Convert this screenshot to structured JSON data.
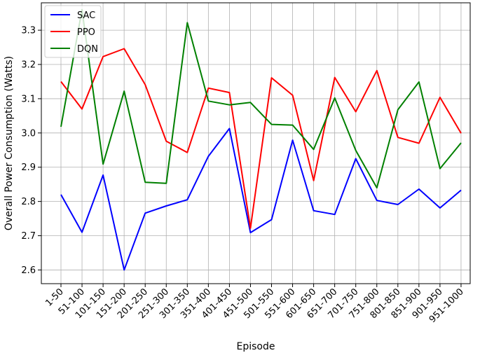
{
  "chart_data": {
    "type": "line",
    "title": "",
    "xlabel": "Episode",
    "ylabel": "Overall Power Consumption (Watts)",
    "ylim": [
      2.56,
      3.38
    ],
    "yticks": [
      "2.6",
      "2.7",
      "2.8",
      "2.9",
      "3.0",
      "3.1",
      "3.2",
      "3.3"
    ],
    "grid": true,
    "legend_position": "top-left",
    "categories": [
      "1-50",
      "51-100",
      "101-150",
      "151-200",
      "201-250",
      "251-300",
      "301-350",
      "351-400",
      "401-450",
      "451-500",
      "501-550",
      "551-600",
      "601-650",
      "651-700",
      "701-750",
      "751-800",
      "801-850",
      "851-900",
      "901-950",
      "951-1000"
    ],
    "series": [
      {
        "name": "SAC",
        "color": "#0000ff",
        "values": [
          2.82,
          2.71,
          2.877,
          2.6,
          2.766,
          2.787,
          2.805,
          2.932,
          3.013,
          2.709,
          2.747,
          2.979,
          2.773,
          2.762,
          2.925,
          2.803,
          2.791,
          2.836,
          2.781,
          2.833
        ]
      },
      {
        "name": "PPO",
        "color": "#ff0000",
        "values": [
          3.15,
          3.07,
          3.223,
          3.246,
          3.141,
          2.976,
          2.943,
          3.131,
          3.118,
          2.722,
          3.161,
          3.11,
          2.861,
          3.162,
          3.062,
          3.182,
          2.987,
          2.97,
          3.104,
          2.999
        ]
      },
      {
        "name": "DQN",
        "color": "#008000",
        "values": [
          3.018,
          3.36,
          2.909,
          3.122,
          2.856,
          2.853,
          3.322,
          3.093,
          3.082,
          3.089,
          3.025,
          3.023,
          2.952,
          3.102,
          2.949,
          2.84,
          3.068,
          3.149,
          2.896,
          2.971
        ]
      }
    ]
  }
}
